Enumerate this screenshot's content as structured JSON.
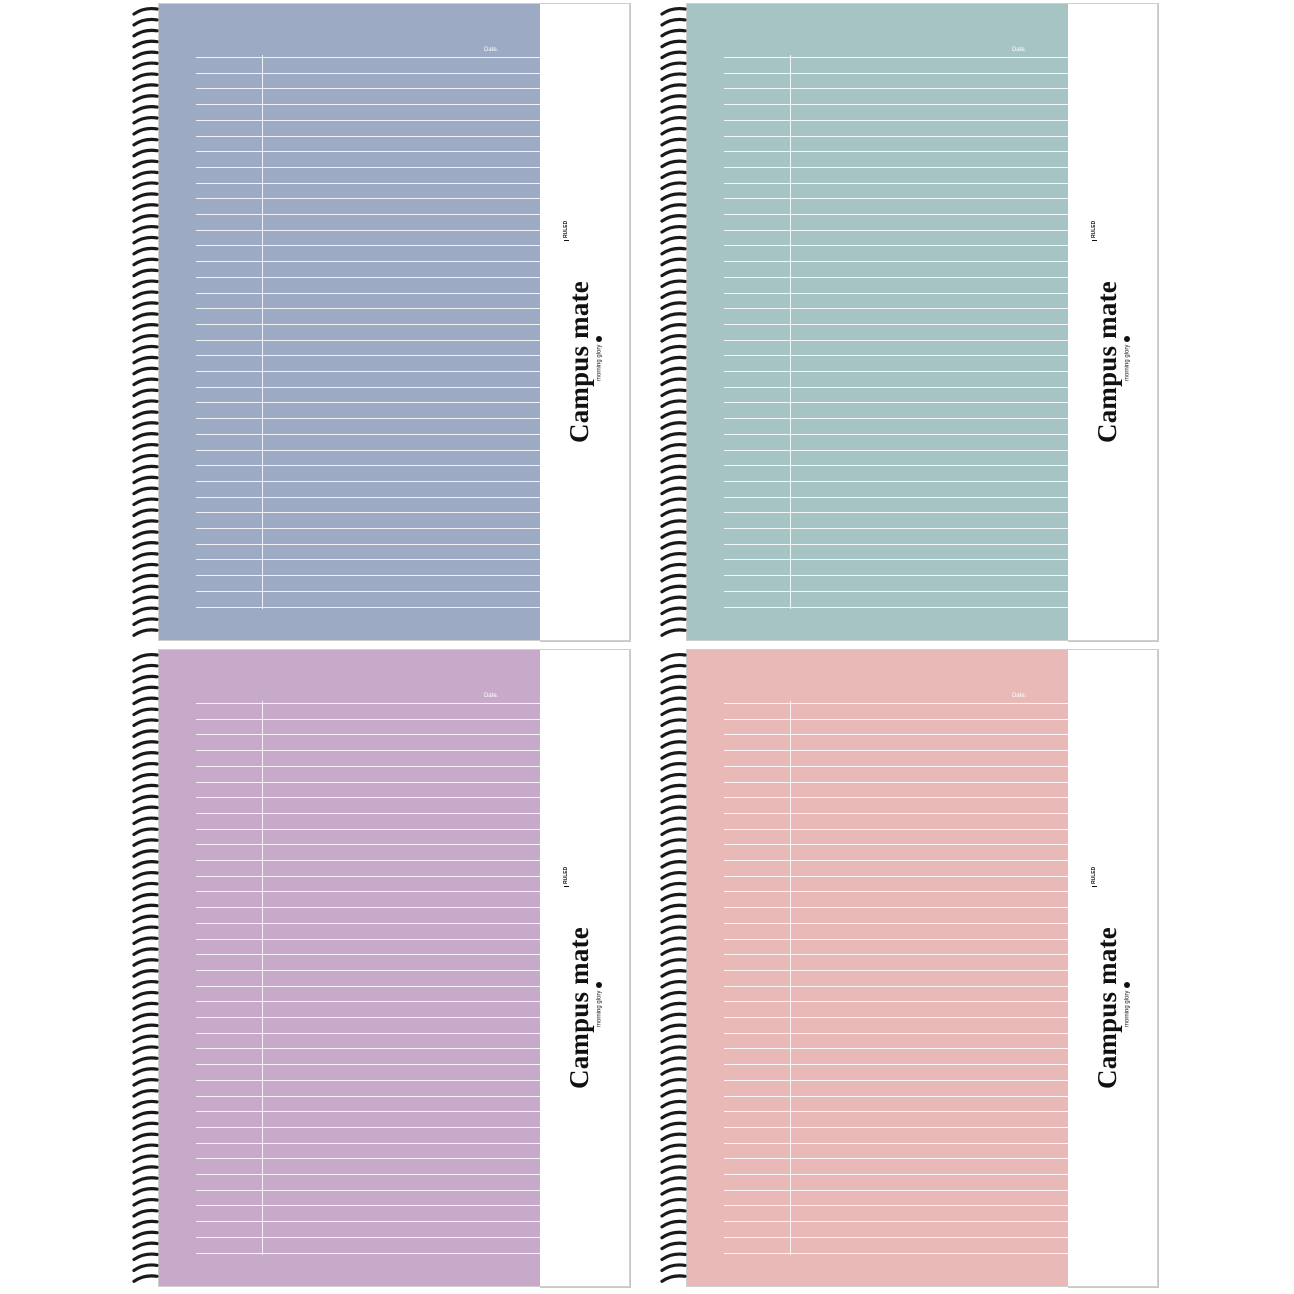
{
  "notebooks": [
    {
      "cover_color": "#9caac3",
      "title": "Campus mate",
      "subtitle": "RULED",
      "date_label": "Date.",
      "maker": "morning glory"
    },
    {
      "cover_color": "#a5c4c3",
      "title": "Campus mate",
      "subtitle": "RULED",
      "date_label": "Date.",
      "maker": "morning glory"
    },
    {
      "cover_color": "#c7a9c9",
      "title": "Campus mate",
      "subtitle": "RULED",
      "date_label": "Date.",
      "maker": "morning glory"
    },
    {
      "cover_color": "#e9b9b8",
      "title": "Campus mate",
      "subtitle": "RULED",
      "date_label": "Date.",
      "maker": "morning glory"
    }
  ],
  "colors": {
    "spiral": "#1a1a1a",
    "band": "#ffffff",
    "rule_lines": "#ffffff"
  },
  "icons": {
    "binding": "spiral-binding-icon",
    "maker_logo": "morning-glory-logo-icon"
  }
}
